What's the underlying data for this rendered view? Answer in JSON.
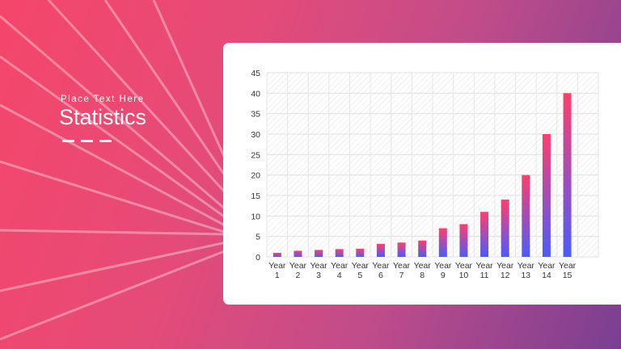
{
  "slide": {
    "subtitle": "Place Text Here",
    "title": "Statistics"
  },
  "colors": {
    "bar_top": "#ff3e6c",
    "bar_bottom": "#4a5cff"
  },
  "chart_data": {
    "type": "bar",
    "categories": [
      "Year 1",
      "Year 2",
      "Year 3",
      "Year 4",
      "Year 5",
      "Year 6",
      "Year 7",
      "Year 8",
      "Year 9",
      "Year 10",
      "Year 11",
      "Year 12",
      "Year 13",
      "Year 14",
      "Year 15"
    ],
    "values": [
      1,
      1.5,
      1.7,
      1.9,
      2,
      3.2,
      3.5,
      4,
      7,
      8,
      11,
      14,
      20,
      30,
      40
    ],
    "yticks": [
      0,
      5,
      10,
      15,
      20,
      25,
      30,
      35,
      40,
      45
    ],
    "ylim": [
      0,
      45
    ],
    "grid": true,
    "title": "",
    "xlabel": "",
    "ylabel": ""
  }
}
